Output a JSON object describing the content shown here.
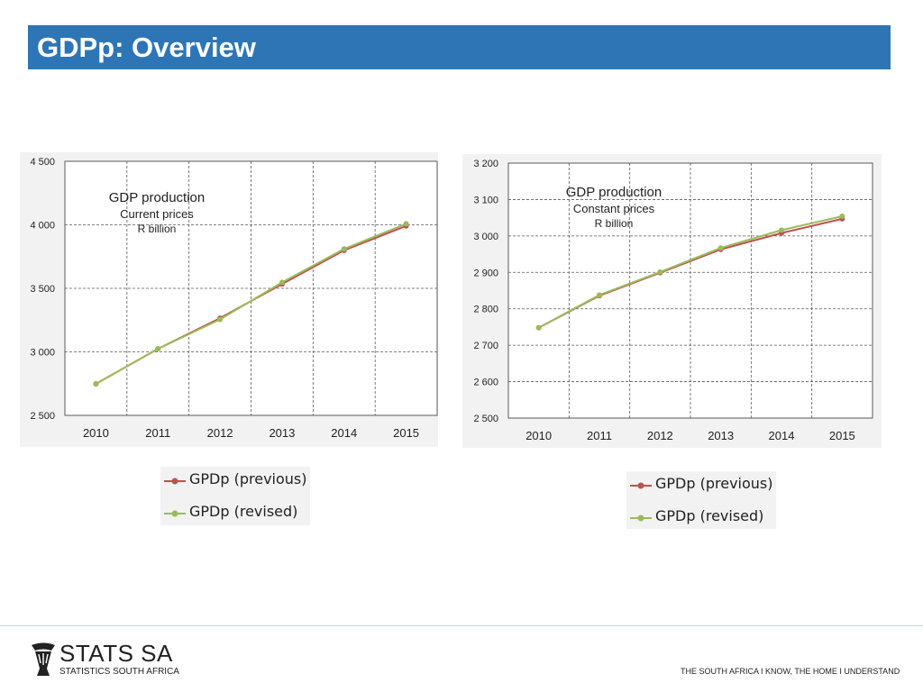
{
  "header": {
    "title": "GDPp: Overview"
  },
  "colors": {
    "title_bar": "#2e75b6",
    "previous": "#c0504d",
    "revised": "#9bbb59"
  },
  "chart_data": [
    {
      "type": "line",
      "title": "GDP production",
      "subtitle": "Current prices",
      "unit": "R billion",
      "categories": [
        "2010",
        "2011",
        "2012",
        "2013",
        "2014",
        "2015"
      ],
      "ylim": [
        2500,
        4500
      ],
      "yticks": [
        2500,
        3000,
        3500,
        4000,
        4500
      ],
      "ytick_labels": [
        "2 500",
        "3 000",
        "3 500",
        "4 000",
        "4 500"
      ],
      "grid": true,
      "legend": "below",
      "series": [
        {
          "name": "GPDp (previous)",
          "color": "#c0504d",
          "values": [
            2748,
            3024,
            3265,
            3534,
            3799,
            3991
          ]
        },
        {
          "name": "GPDp (revised)",
          "color": "#9bbb59",
          "values": [
            2748,
            3024,
            3255,
            3547,
            3810,
            4008
          ]
        }
      ]
    },
    {
      "type": "line",
      "title": "GDP production",
      "subtitle": "Constant prices",
      "unit": "R billion",
      "categories": [
        "2010",
        "2011",
        "2012",
        "2013",
        "2014",
        "2015"
      ],
      "ylim": [
        2500,
        3200
      ],
      "yticks": [
        2500,
        2600,
        2700,
        2800,
        2900,
        3000,
        3100,
        3200
      ],
      "ytick_labels": [
        "2 500",
        "2 600",
        "2 700",
        "2 800",
        "2 900",
        "3 000",
        "3 100",
        "3 200"
      ],
      "grid": true,
      "legend": "below",
      "series": [
        {
          "name": "GPDp (previous)",
          "color": "#c0504d",
          "values": [
            2748,
            2836,
            2899,
            2963,
            3008,
            3047
          ]
        },
        {
          "name": "GPDp (revised)",
          "color": "#9bbb59",
          "values": [
            2748,
            2838,
            2901,
            2967,
            3016,
            3054
          ]
        }
      ]
    }
  ],
  "footer": {
    "logo_name": "STATS SA",
    "logo_subtitle": "STATISTICS SOUTH AFRICA",
    "tagline": "THE SOUTH AFRICA I KNOW, THE HOME I UNDERSTAND"
  }
}
